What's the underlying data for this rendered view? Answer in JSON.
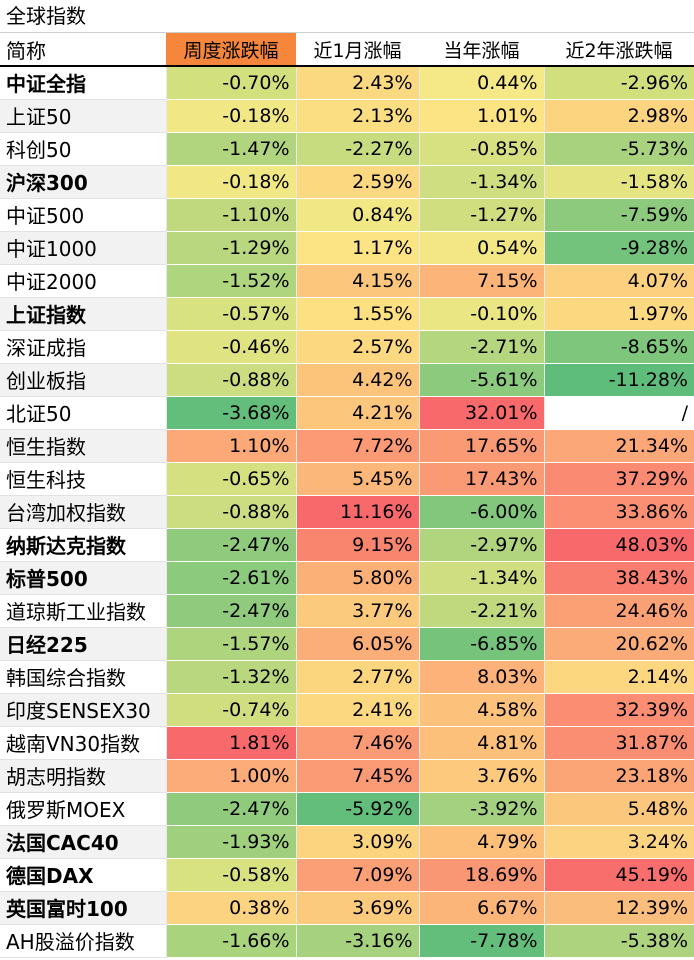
{
  "title": "全球指数",
  "headers": [
    "简称",
    "周度涨跌幅",
    "近1月涨幅",
    "当年涨幅",
    "近2年涨跌幅"
  ],
  "rows": [
    {
      "name": "中证全指",
      "bold": true,
      "values": [
        "-0.70%",
        "2.43%",
        "0.44%",
        "-2.96%"
      ],
      "colors": [
        "#d2e07e",
        "#fbd980",
        "#f5e886",
        "#d2df7d"
      ]
    },
    {
      "name": "上证50",
      "bold": false,
      "values": [
        "-0.18%",
        "2.13%",
        "1.01%",
        "2.98%"
      ],
      "colors": [
        "#f2e785",
        "#fcde82",
        "#fce383",
        "#fcd480"
      ]
    },
    {
      "name": "科创50",
      "bold": false,
      "values": [
        "-1.47%",
        "-2.27%",
        "-0.85%",
        "-5.73%"
      ],
      "colors": [
        "#b1d57e",
        "#c7db7f",
        "#d7e181",
        "#a9d27f"
      ]
    },
    {
      "name": "沪深300",
      "bold": true,
      "values": [
        "-0.18%",
        "2.59%",
        "-1.34%",
        "-1.58%"
      ],
      "colors": [
        "#f2e785",
        "#fcd880",
        "#cfde80",
        "#e4e483"
      ]
    },
    {
      "name": "中证500",
      "bold": false,
      "values": [
        "-1.10%",
        "0.84%",
        "-1.27%",
        "-7.59%"
      ],
      "colors": [
        "#c0d97f",
        "#f2e785",
        "#d0de80",
        "#8dca7d"
      ]
    },
    {
      "name": "中证1000",
      "bold": false,
      "values": [
        "-1.29%",
        "1.17%",
        "0.54%",
        "-9.28%"
      ],
      "colors": [
        "#b9d77e",
        "#fce383",
        "#f3e785",
        "#74c37c"
      ]
    },
    {
      "name": "中证2000",
      "bold": false,
      "values": [
        "-1.52%",
        "4.15%",
        "7.15%",
        "4.07%"
      ],
      "colors": [
        "#afd57e",
        "#fcc77c",
        "#fcb479",
        "#fcd07f"
      ]
    },
    {
      "name": "上证指数",
      "bold": true,
      "values": [
        "-0.57%",
        "1.55%",
        "-0.10%",
        "1.97%"
      ],
      "colors": [
        "#d9e281",
        "#fce082",
        "#ebe684",
        "#fcd880"
      ]
    },
    {
      "name": "深证成指",
      "bold": false,
      "values": [
        "-0.46%",
        "2.57%",
        "-2.71%",
        "-8.65%"
      ],
      "colors": [
        "#e0e382",
        "#fcd880",
        "#b4d67f",
        "#7ec67c"
      ]
    },
    {
      "name": "创业板指",
      "bold": false,
      "values": [
        "-0.88%",
        "4.42%",
        "-5.61%",
        "-11.28%"
      ],
      "colors": [
        "#cbdd80",
        "#fcc47b",
        "#8cca7e",
        "#5ebd7a"
      ]
    },
    {
      "name": "北证50",
      "bold": false,
      "values": [
        "-3.68%",
        "4.21%",
        "32.01%",
        "/"
      ],
      "colors": [
        "#63be7b",
        "#fcc77c",
        "#f8696b",
        "#ffffff"
      ]
    },
    {
      "name": "恒生指数",
      "bold": false,
      "values": [
        "1.10%",
        "7.72%",
        "17.65%",
        "21.34%"
      ],
      "colors": [
        "#fca877",
        "#fb9a75",
        "#fa9a75",
        "#fca777"
      ]
    },
    {
      "name": "恒生科技",
      "bold": false,
      "values": [
        "-0.65%",
        "5.45%",
        "17.43%",
        "37.29%"
      ],
      "colors": [
        "#d5e181",
        "#fbb779",
        "#fa9a75",
        "#fa8a72"
      ]
    },
    {
      "name": "台湾加权指数",
      "bold": false,
      "values": [
        "-0.88%",
        "11.16%",
        "-6.00%",
        "33.86%"
      ],
      "colors": [
        "#cbdd80",
        "#f8696b",
        "#83c77d",
        "#fa8f73"
      ]
    },
    {
      "name": "纳斯达克指数",
      "bold": true,
      "values": [
        "-2.47%",
        "9.15%",
        "-2.97%",
        "48.03%"
      ],
      "colors": [
        "#90cb7d",
        "#f9856f",
        "#b1d57f",
        "#f8696b"
      ]
    },
    {
      "name": "标普500",
      "bold": true,
      "values": [
        "-2.61%",
        "5.80%",
        "-1.34%",
        "38.43%"
      ],
      "colors": [
        "#8cca7d",
        "#fbb078",
        "#cfde80",
        "#f97e70"
      ]
    },
    {
      "name": "道琼斯工业指数",
      "bold": false,
      "values": [
        "-2.47%",
        "3.77%",
        "-2.21%",
        "24.46%"
      ],
      "colors": [
        "#90cb7d",
        "#fcca7d",
        "#c0d97f",
        "#fb9f75"
      ]
    },
    {
      "name": "日经225",
      "bold": true,
      "values": [
        "-1.57%",
        "6.05%",
        "-6.85%",
        "20.62%"
      ],
      "colors": [
        "#aed47e",
        "#fbae78",
        "#76c47c",
        "#fbab77"
      ]
    },
    {
      "name": "韩国综合指数",
      "bold": false,
      "values": [
        "-1.32%",
        "2.77%",
        "8.03%",
        "2.14%"
      ],
      "colors": [
        "#b8d77e",
        "#fcd67f",
        "#fcb279",
        "#fcd780"
      ]
    },
    {
      "name": "印度SENSEX30",
      "bold": false,
      "values": [
        "-0.74%",
        "2.41%",
        "4.58%",
        "32.39%"
      ],
      "colors": [
        "#d0de80",
        "#fcd980",
        "#fcc27b",
        "#fa8d72"
      ]
    },
    {
      "name": "越南VN30指数",
      "bold": false,
      "values": [
        "1.81%",
        "7.46%",
        "4.81%",
        "31.87%"
      ],
      "colors": [
        "#f8696b",
        "#fa9b75",
        "#fcc07b",
        "#fa8e73"
      ]
    },
    {
      "name": "胡志明指数",
      "bold": false,
      "values": [
        "1.00%",
        "7.45%",
        "3.76%",
        "23.18%"
      ],
      "colors": [
        "#fcac78",
        "#fa9b75",
        "#fcc97d",
        "#fba576"
      ]
    },
    {
      "name": "俄罗斯MOEX",
      "bold": false,
      "values": [
        "-2.47%",
        "-5.92%",
        "-3.92%",
        "5.48%"
      ],
      "colors": [
        "#90cb7d",
        "#63be7b",
        "#a4d17f",
        "#fbc77c"
      ]
    },
    {
      "name": "法国CAC40",
      "bold": true,
      "values": [
        "-1.93%",
        "3.09%",
        "4.79%",
        "3.24%"
      ],
      "colors": [
        "#a0cf7e",
        "#fcd37f",
        "#fcc07b",
        "#fcd380"
      ]
    },
    {
      "name": "德国DAX",
      "bold": true,
      "values": [
        "-0.58%",
        "7.09%",
        "18.69%",
        "45.19%"
      ],
      "colors": [
        "#d8e281",
        "#fba076",
        "#f99774",
        "#f86e6c"
      ]
    },
    {
      "name": "英国富时100",
      "bold": true,
      "values": [
        "0.38%",
        "3.69%",
        "6.67%",
        "12.39%"
      ],
      "colors": [
        "#fcd380",
        "#fcca7d",
        "#fbb579",
        "#fbbd7b"
      ]
    },
    {
      "name": "AH股溢价指数",
      "bold": false,
      "values": [
        "-1.66%",
        "-3.16%",
        "-7.78%",
        "-5.38%"
      ],
      "colors": [
        "#aad37e",
        "#a6d17e",
        "#63be7b",
        "#add37f"
      ]
    }
  ]
}
